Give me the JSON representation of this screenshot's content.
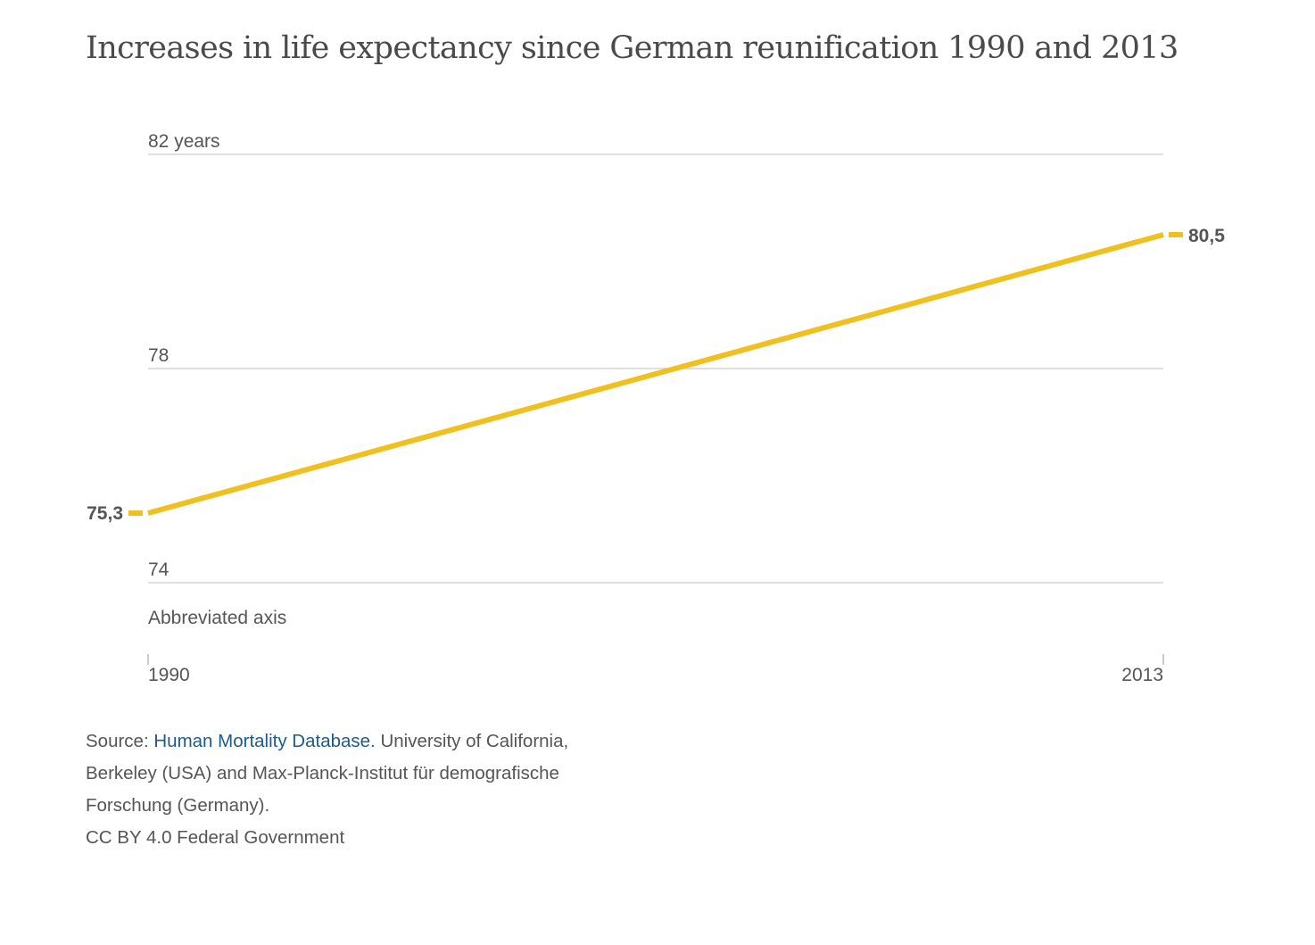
{
  "title": "Increases in life expectancy since German reunification 1990 and 2013",
  "chart_data": {
    "type": "line",
    "title": "Increases in life expectancy since German reunification 1990 and 2013",
    "x": [
      1990,
      2013
    ],
    "series": [
      {
        "values": [
          75.3,
          80.5
        ],
        "color": "#f0c020"
      }
    ],
    "ylim": [
      74,
      82
    ],
    "yticks": [
      {
        "value": 74,
        "label": "74"
      },
      {
        "value": 78,
        "label": "78"
      },
      {
        "value": 82,
        "label": "82 years"
      }
    ],
    "xticks": [
      {
        "value": 1990,
        "label": "1990"
      },
      {
        "value": 2013,
        "label": "2013"
      }
    ],
    "data_labels": [
      "75,3",
      "80,5"
    ],
    "axis_note": "Abbreviated axis",
    "grid": true,
    "gridline_color": "#cccccc",
    "text_color": "#555555"
  },
  "source": {
    "prefix": "Source: ",
    "link_text": "Human Mortality Database.",
    "rest": " University of California, Berkeley (USA) and Max-Planck-Institut für demografische Forschung (Germany).",
    "license": "CC BY 4.0 Federal Government"
  }
}
